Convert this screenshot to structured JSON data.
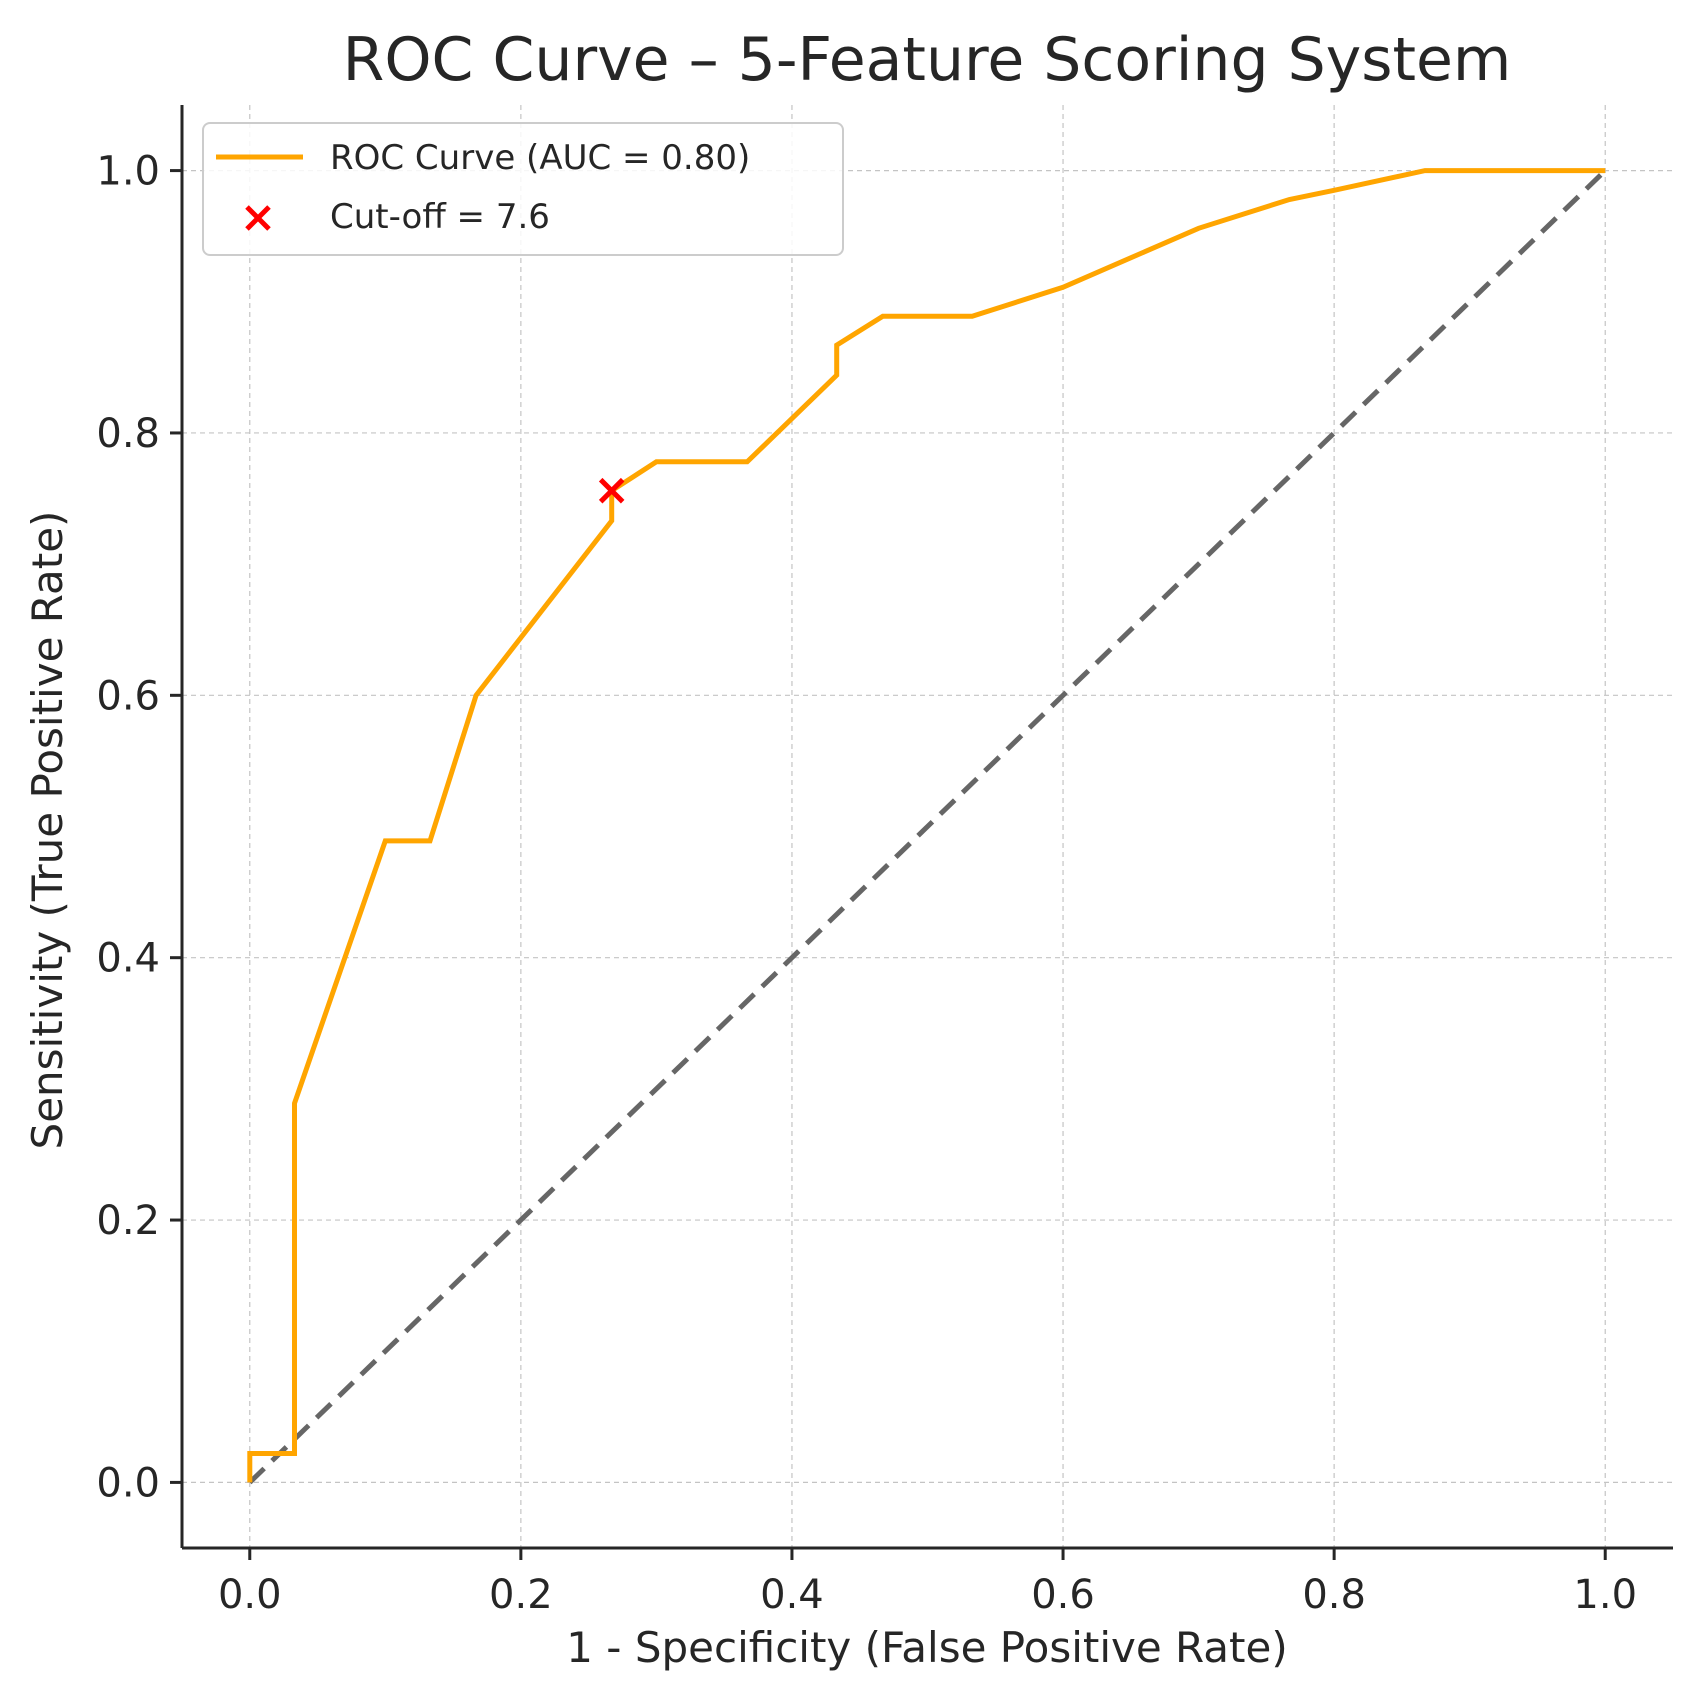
{
  "chart_data": {
    "type": "line",
    "title": "ROC Curve – 5-Feature Scoring System",
    "xlabel": "1 - Specificity (False Positive Rate)",
    "ylabel": "Sensitivity (True Positive Rate)",
    "xlim": [
      -0.05,
      1.05
    ],
    "ylim": [
      -0.05,
      1.05
    ],
    "grid": true,
    "legend_position": "top-left",
    "xticks": [
      0.0,
      0.2,
      0.4,
      0.6,
      0.8,
      1.0
    ],
    "xtick_labels": [
      "0.0",
      "0.2",
      "0.4",
      "0.6",
      "0.8",
      "1.0"
    ],
    "yticks": [
      0.0,
      0.2,
      0.4,
      0.6,
      0.8,
      1.0
    ],
    "ytick_labels": [
      "0.0",
      "0.2",
      "0.4",
      "0.6",
      "0.8",
      "1.0"
    ],
    "series": [
      {
        "name": "ROC Curve (AUC = 0.80)",
        "color": "#FFA500",
        "x": [
          0.0,
          0.0,
          0.033,
          0.033,
          0.1,
          0.133,
          0.167,
          0.2,
          0.267,
          0.267,
          0.3,
          0.367,
          0.433,
          0.433,
          0.467,
          0.533,
          0.6,
          0.7,
          0.767,
          0.8,
          0.867,
          1.0
        ],
        "y": [
          0.0,
          0.022,
          0.022,
          0.289,
          0.489,
          0.489,
          0.6,
          0.644,
          0.733,
          0.756,
          0.778,
          0.778,
          0.844,
          0.867,
          0.889,
          0.889,
          0.911,
          0.956,
          0.978,
          0.985,
          1.0,
          1.0
        ]
      }
    ],
    "reference_line": {
      "x": [
        0,
        1
      ],
      "y": [
        0,
        1
      ],
      "color": "#666666",
      "style": "dashed"
    },
    "marker": {
      "name": "Cut-off = 7.6",
      "x": 0.267,
      "y": 0.756,
      "color": "#FF0000",
      "symbol": "x"
    }
  }
}
